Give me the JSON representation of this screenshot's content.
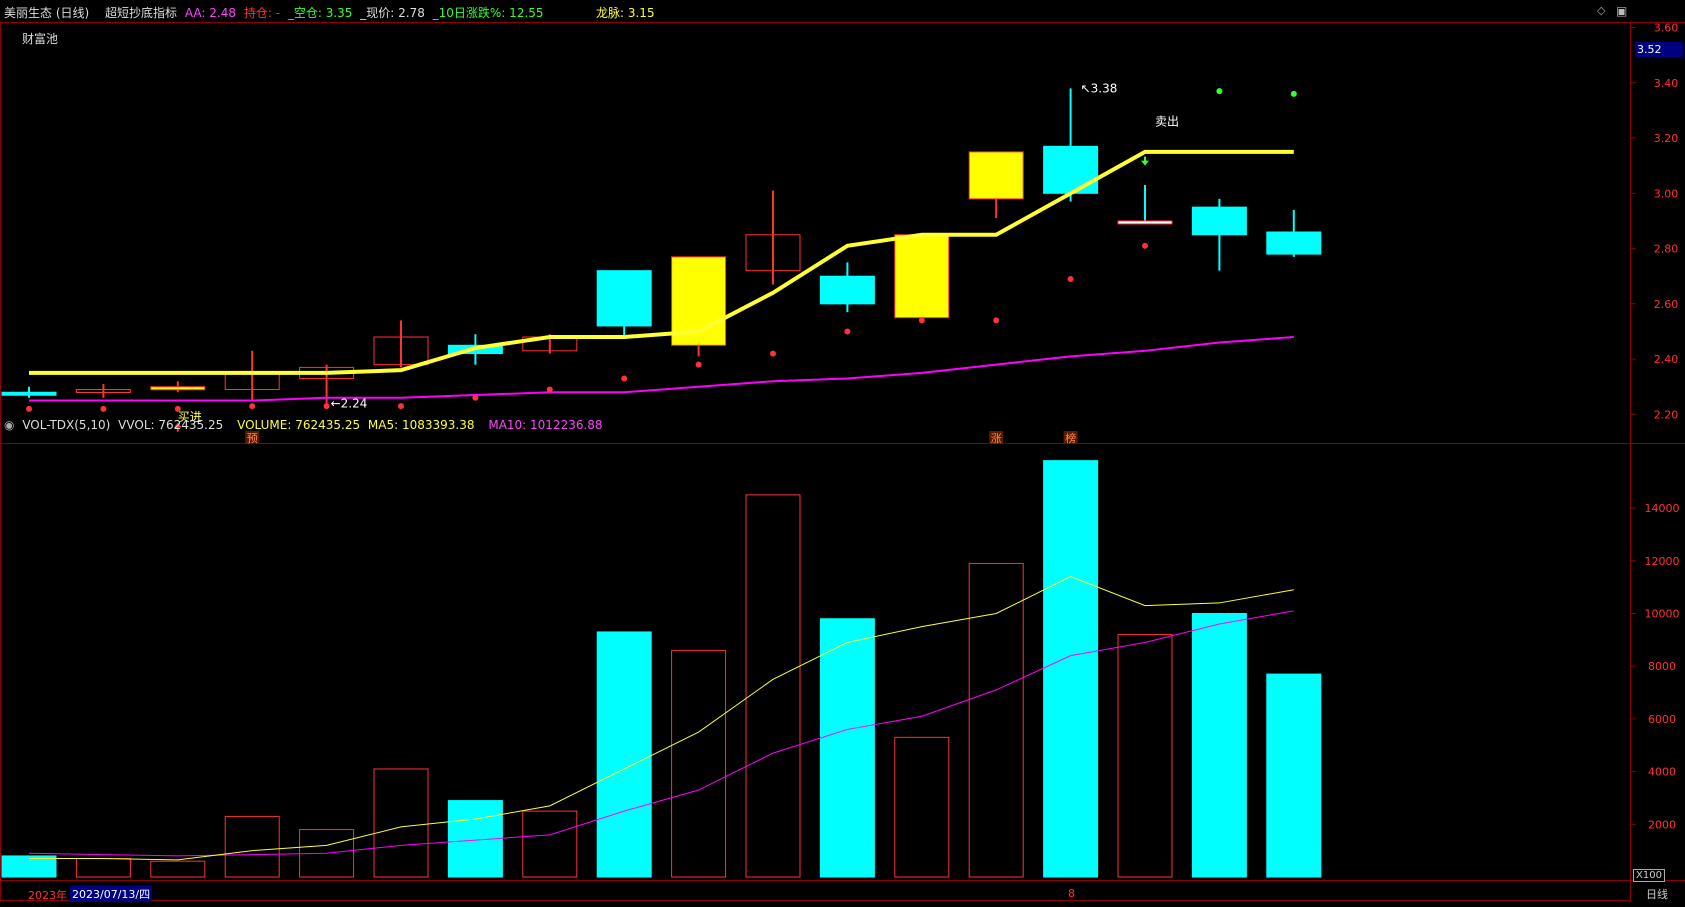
{
  "header": {
    "title": "美丽生态 (日线)",
    "indicator": "超短抄底指标",
    "aa": "AA: 2.48",
    "chicang": "持仓: -",
    "kongcang": "_空仓: 3.35",
    "xianjia": "_现价: 2.78",
    "zhangdie": "_10日涨跌%: 12.55",
    "longmai": "龙脉: 3.15"
  },
  "pool_label": "财富池",
  "price_tag": "3.52",
  "volume_header": {
    "name": "VOL-TDX(5,10)",
    "vvol": "VVOL: 762435.25",
    "volume": "VOLUME: 762435.25",
    "ma5": "MA5: 1083393.38",
    "ma10": "MA10: 1012236.88"
  },
  "footer": {
    "year": "2023年",
    "date": "2023/07/13/四",
    "month_marker": "8",
    "unit": "X100",
    "period": "日线"
  },
  "colors": {
    "up": "#ff3333",
    "down": "#00ffff",
    "yellow_bar": "#ffff00",
    "longmai_line": "#ffff33",
    "ma_line": "#ff00ff",
    "dot": "#ff3333"
  },
  "chart_data": [
    {
      "type": "candlestick",
      "ylim": [
        2.1,
        3.62
      ],
      "yticks": [
        "2.20",
        "2.40",
        "2.60",
        "2.80",
        "3.00",
        "3.20",
        "3.40",
        "3.60"
      ],
      "candles": [
        {
          "o": 2.28,
          "c": 2.27,
          "h": 2.3,
          "l": 2.26,
          "style": "down"
        },
        {
          "o": 2.28,
          "c": 2.29,
          "h": 2.31,
          "l": 2.26,
          "style": "up"
        },
        {
          "o": 2.29,
          "c": 2.3,
          "h": 2.32,
          "l": 2.28,
          "style": "yellow"
        },
        {
          "o": 2.29,
          "c": 2.35,
          "h": 2.43,
          "l": 2.25,
          "style": "up"
        },
        {
          "o": 2.33,
          "c": 2.37,
          "h": 2.38,
          "l": 2.24,
          "style": "up"
        },
        {
          "o": 2.38,
          "c": 2.48,
          "h": 2.54,
          "l": 2.37,
          "style": "up"
        },
        {
          "o": 2.45,
          "c": 2.42,
          "h": 2.49,
          "l": 2.38,
          "style": "down"
        },
        {
          "o": 2.43,
          "c": 2.48,
          "h": 2.49,
          "l": 2.42,
          "style": "up"
        },
        {
          "o": 2.72,
          "c": 2.52,
          "h": 2.72,
          "l": 2.48,
          "style": "down"
        },
        {
          "o": 2.45,
          "c": 2.77,
          "h": 2.77,
          "l": 2.41,
          "style": "yellow"
        },
        {
          "o": 2.72,
          "c": 2.85,
          "h": 3.01,
          "l": 2.67,
          "style": "up"
        },
        {
          "o": 2.7,
          "c": 2.6,
          "h": 2.75,
          "l": 2.57,
          "style": "down"
        },
        {
          "o": 2.55,
          "c": 2.85,
          "h": 2.85,
          "l": 2.54,
          "style": "yellow"
        },
        {
          "o": 2.98,
          "c": 3.15,
          "h": 3.15,
          "l": 2.91,
          "style": "yellow"
        },
        {
          "o": 3.17,
          "c": 3.0,
          "h": 3.38,
          "l": 2.97,
          "style": "down"
        },
        {
          "o": 2.9,
          "c": 2.89,
          "h": 3.03,
          "l": 2.89,
          "style": "white"
        },
        {
          "o": 2.95,
          "c": 2.85,
          "h": 2.98,
          "l": 2.72,
          "style": "down"
        },
        {
          "o": 2.86,
          "c": 2.78,
          "h": 2.94,
          "l": 2.77,
          "style": "down"
        }
      ],
      "longmai": [
        2.35,
        2.35,
        2.35,
        2.35,
        2.35,
        2.36,
        2.44,
        2.48,
        2.48,
        2.5,
        2.64,
        2.81,
        2.85,
        2.85,
        3.0,
        3.15,
        3.15,
        3.15
      ],
      "ma_line": [
        2.25,
        2.25,
        2.25,
        2.25,
        2.26,
        2.26,
        2.27,
        2.28,
        2.28,
        2.3,
        2.32,
        2.33,
        2.35,
        2.38,
        2.41,
        2.43,
        2.46,
        2.48
      ],
      "dots_low": [
        2.22,
        2.22,
        2.22,
        2.23,
        2.23,
        2.23,
        2.26,
        2.29,
        2.33,
        2.38,
        2.42,
        2.5,
        2.54,
        2.54,
        2.69,
        2.81,
        null,
        null
      ],
      "dots_high": [
        null,
        null,
        null,
        null,
        null,
        null,
        null,
        null,
        null,
        null,
        null,
        null,
        null,
        null,
        null,
        null,
        3.37,
        3.36
      ],
      "annotations": [
        {
          "text": "↖3.38",
          "index": 14,
          "value": 3.38
        },
        {
          "text": "←2.24",
          "index": 4,
          "value": 2.24
        },
        {
          "text": "买进",
          "index": 2,
          "value": 2.19
        },
        {
          "text": "卖出",
          "index": 15,
          "value": 3.26
        }
      ],
      "bottom_tags": [
        {
          "text": "预",
          "index": 3
        },
        {
          "text": "涨",
          "index": 13
        },
        {
          "text": "榜",
          "index": 14
        }
      ]
    },
    {
      "type": "bar",
      "ylim": [
        0,
        15900
      ],
      "yticks": [
        "2000",
        "4000",
        "6000",
        "8000",
        "10000",
        "12000",
        "14000"
      ],
      "volumes": [
        800,
        700,
        600,
        2300,
        1800,
        4100,
        2900,
        2500,
        9300,
        8600,
        14500,
        9800,
        5300,
        11900,
        15800,
        9200,
        10000,
        7700
      ],
      "ma5": [
        700,
        700,
        650,
        1000,
        1200,
        1900,
        2200,
        2700,
        4100,
        5500,
        7500,
        8900,
        9500,
        10000,
        11400,
        10300,
        10400,
        10900
      ],
      "ma10": [
        900,
        850,
        800,
        850,
        900,
        1200,
        1400,
        1600,
        2500,
        3300,
        4700,
        5600,
        6100,
        7100,
        8400,
        8900,
        9600,
        10100
      ]
    }
  ]
}
